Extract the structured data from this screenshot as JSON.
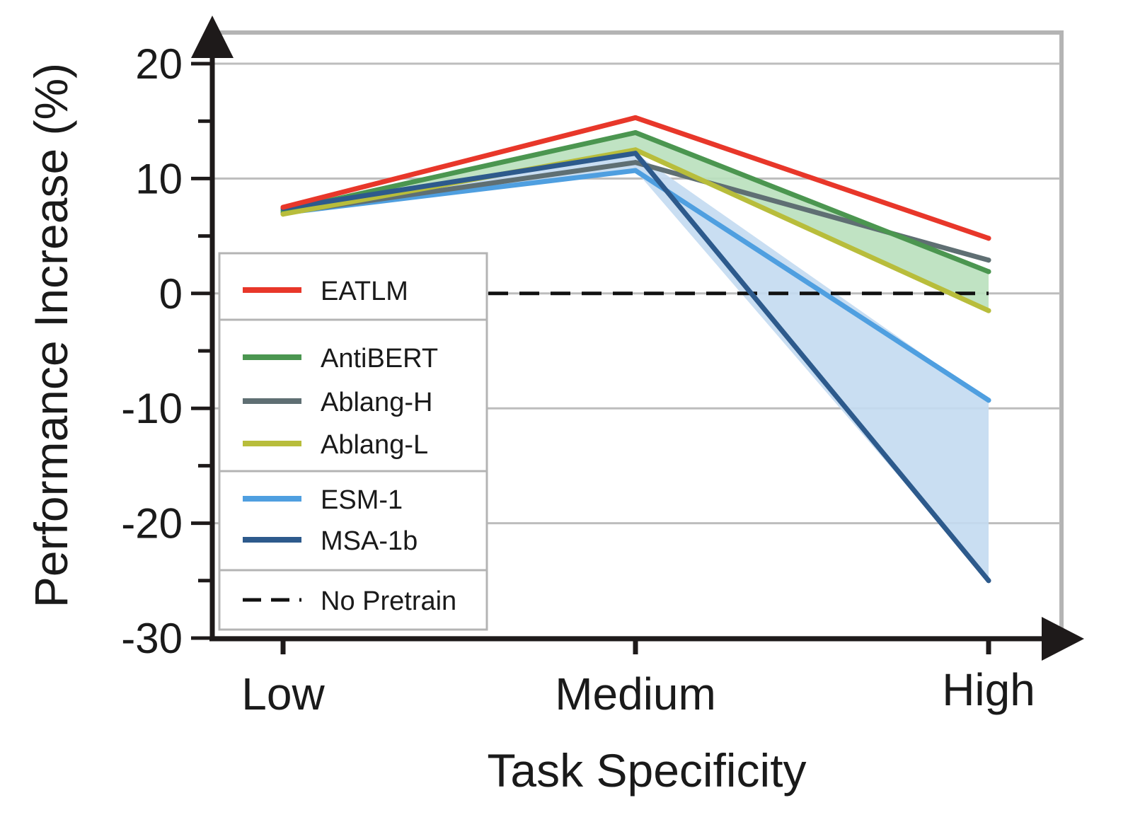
{
  "chart_data": {
    "type": "line",
    "title": "",
    "xlabel": "Task Specificity",
    "ylabel": "Performance Increase (%)",
    "categories": [
      "Low",
      "Medium",
      "High"
    ],
    "ylim": [
      -30,
      20
    ],
    "yticks": [
      20,
      10,
      0,
      -10,
      -20,
      -30
    ],
    "grid": true,
    "legend_position": "left",
    "series": [
      {
        "name": "EATLM",
        "values": [
          7.5,
          15.3,
          4.8
        ],
        "color": "#e8372a"
      },
      {
        "name": "AntiBERT",
        "values": [
          7.2,
          14.0,
          1.9
        ],
        "color": "#4b9650"
      },
      {
        "name": "Ablang-H",
        "values": [
          7.0,
          11.4,
          2.9
        ],
        "color": "#5f6f73"
      },
      {
        "name": "Ablang-L",
        "values": [
          6.9,
          12.5,
          -1.5
        ],
        "color": "#b8bd3b"
      },
      {
        "name": "ESM-1",
        "values": [
          7.0,
          10.7,
          -9.3
        ],
        "color": "#4f9fe0"
      },
      {
        "name": "MSA-1b",
        "values": [
          7.4,
          12.2,
          -25.0
        ],
        "color": "#2d5a8c"
      }
    ],
    "baseline": {
      "name": "No Pretrain",
      "value": 0
    },
    "shaded_bands": [
      {
        "between": [
          "AntiBERT",
          "Ablang-L"
        ],
        "color": "#b9e0bd"
      },
      {
        "between": [
          "ESM-1",
          "MSA-1b"
        ],
        "color": "#c3daf1"
      }
    ],
    "legend_groups": [
      [
        "EATLM"
      ],
      [
        "AntiBERT",
        "Ablang-H",
        "Ablang-L"
      ],
      [
        "ESM-1",
        "MSA-1b"
      ],
      [
        "No Pretrain"
      ]
    ]
  }
}
